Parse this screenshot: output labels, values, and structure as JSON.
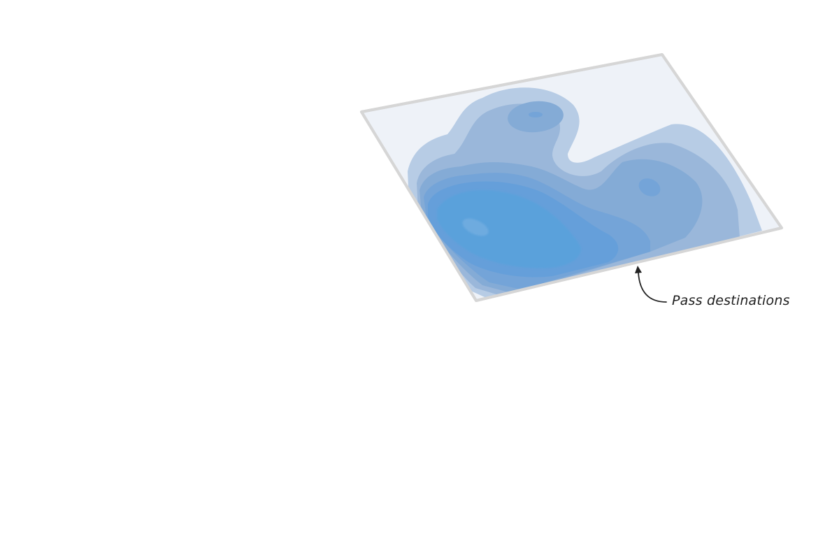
{
  "annotation": {
    "label": "Pass destinations"
  },
  "colors": {
    "background": "#ffffff",
    "pitch_fill": "#eef2f8",
    "pitch_border": "#d6d6d6",
    "density_levels": [
      "#b7cce5",
      "#9ab7da",
      "#84abd6",
      "#74a4d8",
      "#659fda",
      "#5aa1db"
    ],
    "peak": "#7fb4e3",
    "arrow": "#222222"
  }
}
